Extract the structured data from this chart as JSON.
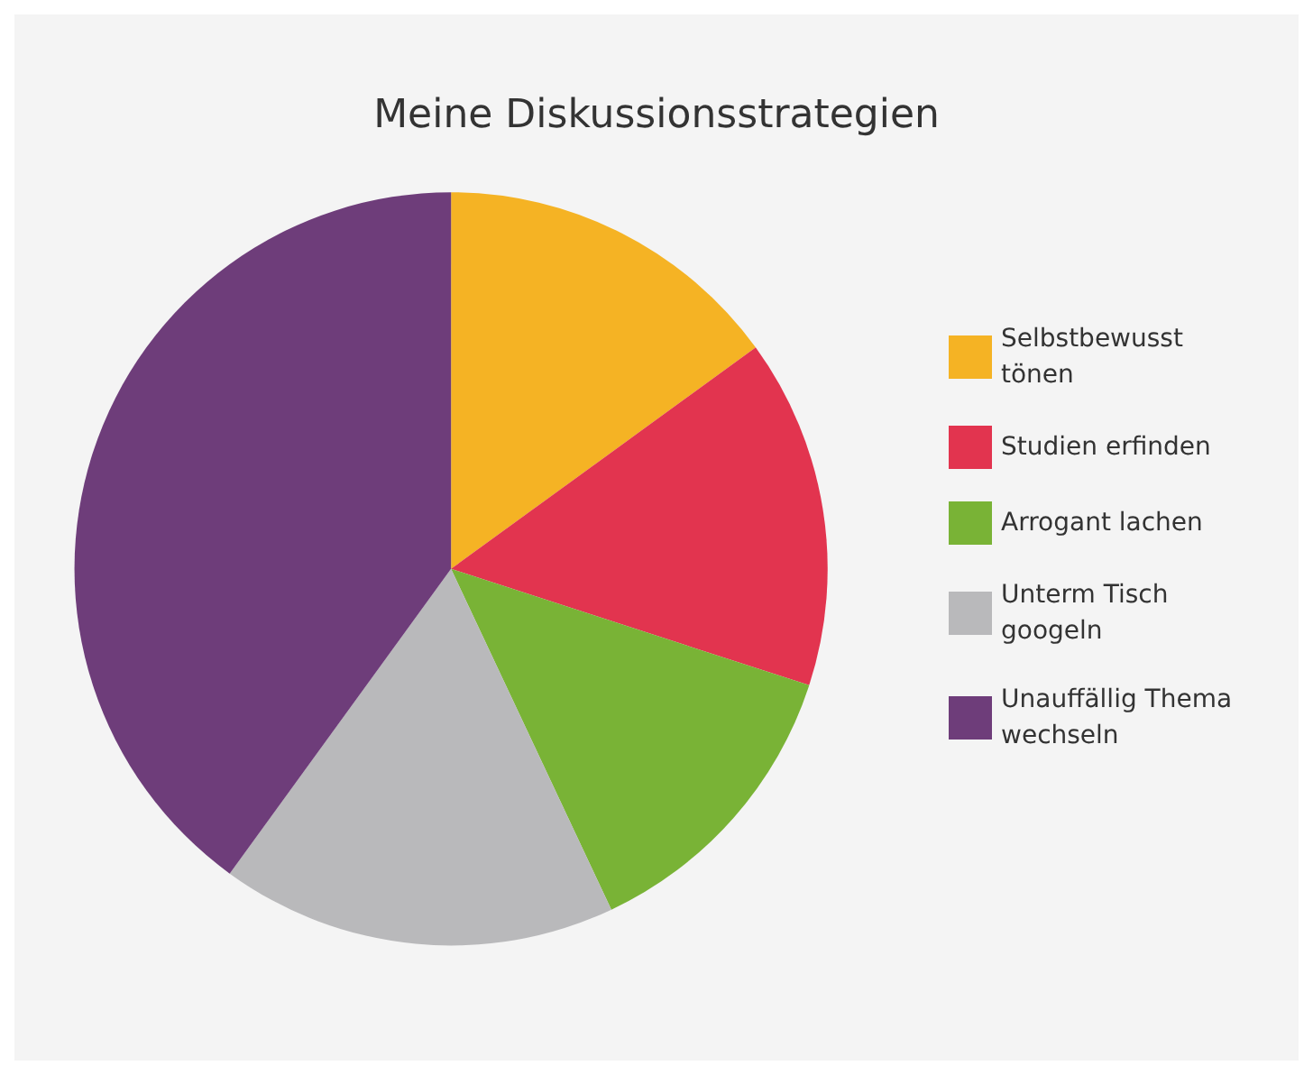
{
  "chart_data": {
    "type": "pie",
    "title": "Meine Diskussionsstrategien",
    "categories": [
      "Selbstbewusst tönen",
      "Studien erfinden",
      "Arrogant lachen",
      "Unterm Tisch googeln",
      "Unauffällig Thema wechseln"
    ],
    "values": [
      15,
      15,
      13,
      17,
      40
    ],
    "colors": [
      "#f5b324",
      "#e2344f",
      "#79b336",
      "#b9b9bb",
      "#6e3d7a"
    ],
    "legend": "right"
  }
}
